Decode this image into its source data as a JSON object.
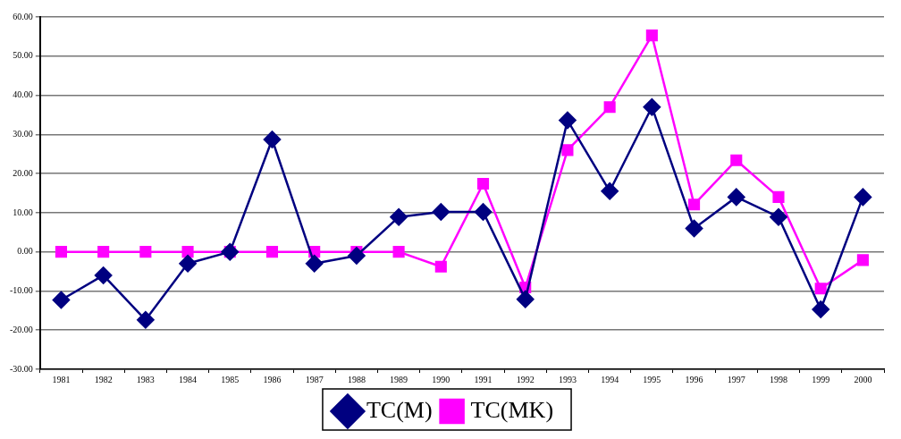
{
  "chart_data": {
    "type": "line",
    "categories": [
      "1981",
      "1982",
      "1983",
      "1984",
      "1985",
      "1986",
      "1987",
      "1988",
      "1989",
      "1990",
      "1991",
      "1992",
      "1993",
      "1994",
      "1995",
      "1996",
      "1997",
      "1998",
      "1999",
      "2000"
    ],
    "series": [
      {
        "name": "TC(M)",
        "color": "#000080",
        "marker": "diamond",
        "values": [
          -12.3,
          -6.0,
          -17.4,
          -3.0,
          0,
          28.7,
          -3.0,
          -1.0,
          8.9,
          10.2,
          10.2,
          -12.1,
          33.6,
          15.5,
          37.0,
          6.0,
          14.0,
          8.9,
          -14.7,
          14.0
        ]
      },
      {
        "name": "TC(MK)",
        "color": "#ff00ff",
        "marker": "square",
        "values": [
          0,
          0,
          0,
          0,
          0,
          0,
          0,
          0,
          0,
          -3.8,
          17.4,
          -9.1,
          26.0,
          37.0,
          55.3,
          12.1,
          23.4,
          14.0,
          -9.4,
          -2.1
        ]
      }
    ],
    "ylim": [
      -30,
      60
    ],
    "yticks": [
      {
        "value": -30,
        "label": "-30.00"
      },
      {
        "value": -20,
        "label": "-20.00"
      },
      {
        "value": -10,
        "label": "-10.00"
      },
      {
        "value": 0,
        "label": "0.00"
      },
      {
        "value": 10,
        "label": "10.00"
      },
      {
        "value": 20,
        "label": "20.00"
      },
      {
        "value": 30,
        "label": "30.00"
      },
      {
        "value": 40,
        "label": "40.00"
      },
      {
        "value": 50,
        "label": "50.00"
      },
      {
        "value": 60,
        "label": "60.00"
      }
    ],
    "grid": "y",
    "legend": "bottom",
    "line_style": "solid"
  }
}
